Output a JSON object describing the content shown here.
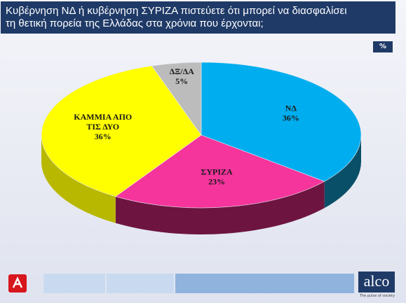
{
  "title": {
    "line1": "Κυβέρνηση ΝΔ ή κυβέρνηση ΣΥΡΙΖΑ πιστεύετε ότι μπορεί να διασφαλίσει",
    "line2": "τη θετική πορεία της Ελλάδας στα χρόνια που έρχονται;"
  },
  "unit_badge": "%",
  "chart_data": {
    "type": "pie",
    "slices": [
      {
        "label": "ΝΔ",
        "value": 36,
        "value_label": "36%",
        "color": "#00aeef",
        "side_color": "#0a4f68"
      },
      {
        "label": "ΣΥΡΙΖΑ",
        "value": 23,
        "value_label": "23%",
        "color": "#f5349c",
        "side_color": "#6e1440"
      },
      {
        "label": "ΚΑΜΜΙΑ ΑΠΟ ΤΙΣ ΔΥΟ",
        "value": 36,
        "value_label": "36%",
        "color": "#ffff00",
        "side_color": "#b8b800"
      },
      {
        "label": "ΔΞ/ΔΑ",
        "value": 5,
        "value_label": "5%",
        "color": "#bcbcbc",
        "side_color": "#777777"
      }
    ]
  },
  "footer": {
    "brand": "alco",
    "tagline": "The pulse of society"
  }
}
